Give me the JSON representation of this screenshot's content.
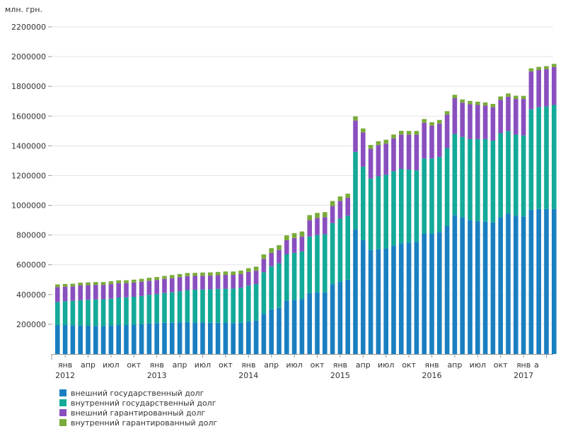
{
  "chart_data": {
    "type": "bar",
    "stacked": true,
    "unit_label": "млн. грн.",
    "ylim": [
      0,
      2200000
    ],
    "y_ticks": [
      "200000",
      "400000",
      "600000",
      "800000",
      "1000000",
      "1200000",
      "1400000",
      "1600000",
      "1800000",
      "2000000",
      "2200000"
    ],
    "grid": true,
    "legend_position": "bottom-left",
    "x_month_labels": [
      {
        "index": 1,
        "text": "янв"
      },
      {
        "index": 4,
        "text": "апр"
      },
      {
        "index": 7,
        "text": "июл"
      },
      {
        "index": 10,
        "text": "окт"
      },
      {
        "index": 13,
        "text": "янв"
      },
      {
        "index": 16,
        "text": "апр"
      },
      {
        "index": 19,
        "text": "июл"
      },
      {
        "index": 22,
        "text": "окт"
      },
      {
        "index": 25,
        "text": "янв"
      },
      {
        "index": 28,
        "text": "апр"
      },
      {
        "index": 31,
        "text": "июл"
      },
      {
        "index": 34,
        "text": "окт"
      },
      {
        "index": 37,
        "text": "янв"
      },
      {
        "index": 40,
        "text": "апр"
      },
      {
        "index": 43,
        "text": "июл"
      },
      {
        "index": 46,
        "text": "окт"
      },
      {
        "index": 49,
        "text": "янв"
      },
      {
        "index": 52,
        "text": "апр"
      },
      {
        "index": 55,
        "text": "июл"
      },
      {
        "index": 58,
        "text": "окт"
      },
      {
        "index": 61,
        "text": "янв"
      },
      {
        "index": 62.7,
        "text": "а"
      }
    ],
    "x_year_labels": [
      {
        "index": 1,
        "text": "2012"
      },
      {
        "index": 13,
        "text": "2013"
      },
      {
        "index": 25,
        "text": "2014"
      },
      {
        "index": 37,
        "text": "2015"
      },
      {
        "index": 49,
        "text": "2016"
      },
      {
        "index": 61,
        "text": "2017"
      }
    ],
    "series": [
      {
        "name": "внешний государственный долг",
        "color": "#1a7fc1",
        "values": [
          195000,
          195000,
          193000,
          192000,
          190000,
          189000,
          188000,
          190000,
          195000,
          195000,
          197000,
          200000,
          205000,
          208000,
          210000,
          210000,
          212000,
          215000,
          212000,
          212000,
          210000,
          210000,
          209000,
          208000,
          210000,
          220000,
          225000,
          270000,
          300000,
          310000,
          360000,
          365000,
          370000,
          410000,
          415000,
          415000,
          470000,
          485000,
          500000,
          840000,
          765000,
          700000,
          705000,
          710000,
          730000,
          745000,
          750000,
          755000,
          810000,
          810000,
          820000,
          860000,
          935000,
          920000,
          900000,
          895000,
          890000,
          885000,
          920000,
          945000,
          930000,
          925000,
          970000,
          975000,
          975000,
          975000
        ]
      },
      {
        "name": "внутренний государственный долг",
        "color": "#13aa98",
        "values": [
          155000,
          160000,
          165000,
          170000,
          175000,
          178000,
          180000,
          182000,
          185000,
          186000,
          188000,
          190000,
          193000,
          195000,
          200000,
          205000,
          210000,
          215000,
          220000,
          222000,
          225000,
          228000,
          230000,
          232000,
          235000,
          240000,
          245000,
          280000,
          290000,
          300000,
          310000,
          315000,
          320000,
          380000,
          385000,
          390000,
          410000,
          425000,
          430000,
          520000,
          495000,
          480000,
          490000,
          495000,
          500000,
          500000,
          490000,
          480000,
          505000,
          505000,
          505000,
          525000,
          545000,
          540000,
          545000,
          550000,
          555000,
          550000,
          565000,
          555000,
          545000,
          545000,
          675000,
          685000,
          690000,
          700000
        ]
      },
      {
        "name": "внешний гарантированный долг",
        "color": "#8a4fbf",
        "values": [
          100000,
          98000,
          97000,
          99000,
          98000,
          98000,
          97000,
          98000,
          97000,
          96000,
          96000,
          96000,
          95000,
          95000,
          95000,
          95000,
          95000,
          94000,
          93000,
          92000,
          92000,
          92000,
          93000,
          92000,
          92000,
          92000,
          90000,
          90000,
          90000,
          90000,
          95000,
          100000,
          100000,
          110000,
          115000,
          115000,
          115000,
          120000,
          120000,
          210000,
          230000,
          200000,
          210000,
          210000,
          220000,
          230000,
          235000,
          240000,
          240000,
          220000,
          225000,
          225000,
          240000,
          230000,
          235000,
          230000,
          225000,
          225000,
          225000,
          230000,
          240000,
          245000,
          255000,
          250000,
          250000,
          255000
        ]
      },
      {
        "name": "внутренний гарантированный долг",
        "color": "#7aab3a",
        "values": [
          18000,
          18000,
          18000,
          19000,
          19000,
          19000,
          19000,
          19000,
          19000,
          19000,
          19000,
          20000,
          20000,
          20000,
          20000,
          21000,
          21000,
          21000,
          21000,
          22000,
          22000,
          22000,
          23000,
          23000,
          24000,
          25000,
          28000,
          30000,
          32000,
          32000,
          33000,
          33000,
          34000,
          34000,
          34000,
          34000,
          34000,
          30000,
          28000,
          28000,
          27000,
          26000,
          26000,
          26000,
          26000,
          26000,
          25000,
          25000,
          25000,
          24000,
          24000,
          23000,
          23000,
          22000,
          22000,
          22000,
          22000,
          22000,
          22000,
          22000,
          22000,
          21000,
          21000,
          21000,
          21000,
          21000
        ]
      }
    ]
  }
}
